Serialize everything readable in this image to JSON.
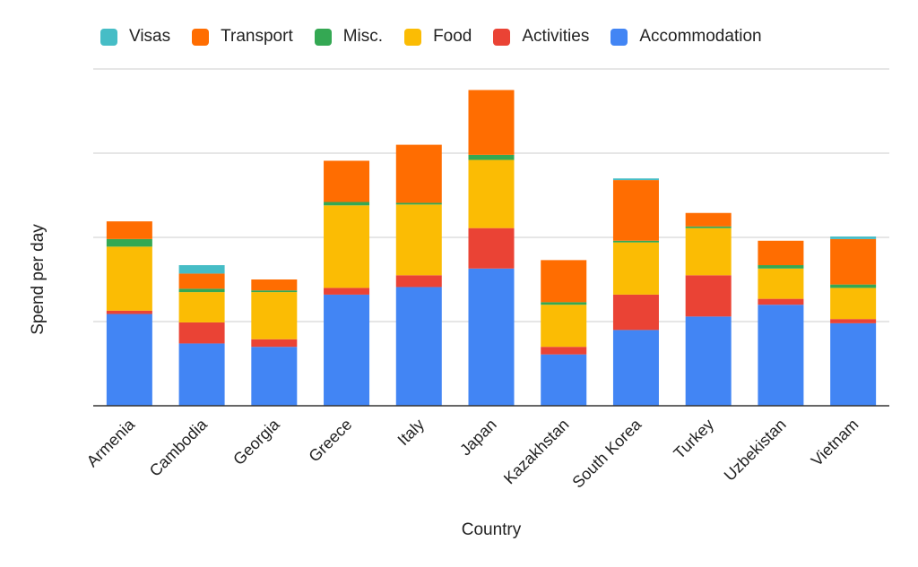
{
  "chart_data": {
    "type": "bar",
    "stacked": true,
    "title": "",
    "xlabel": "Country",
    "ylabel": "Spend per day",
    "ylim": [
      0,
      40
    ],
    "y_tick_labels_shown": false,
    "grid": true,
    "legend_position": "top",
    "categories": [
      "Armenia",
      "Cambodia",
      "Georgia",
      "Greece",
      "Italy",
      "Japan",
      "Kazakhstan",
      "South Korea",
      "Turkey",
      "Uzbekistan",
      "Vietnam"
    ],
    "series": [
      {
        "name": "Accommodation",
        "color": "#4285f4",
        "values": [
          10.9,
          7.4,
          7.0,
          13.2,
          14.1,
          16.3,
          6.1,
          9.0,
          10.6,
          12.0,
          9.8
        ]
      },
      {
        "name": "Activities",
        "color": "#ea4335",
        "values": [
          0.4,
          2.5,
          0.9,
          0.8,
          1.4,
          4.8,
          0.9,
          4.2,
          4.9,
          0.7,
          0.5
        ]
      },
      {
        "name": "Food",
        "color": "#fbbc04",
        "values": [
          7.6,
          3.6,
          5.6,
          9.8,
          8.4,
          8.1,
          5.0,
          6.2,
          5.6,
          3.6,
          3.7
        ]
      },
      {
        "name": "Misc.",
        "color": "#34a853",
        "values": [
          0.9,
          0.4,
          0.2,
          0.4,
          0.2,
          0.6,
          0.3,
          0.2,
          0.2,
          0.4,
          0.4
        ]
      },
      {
        "name": "Transport",
        "color": "#ff6d01",
        "values": [
          2.1,
          1.8,
          1.3,
          4.9,
          6.9,
          7.7,
          5.0,
          7.2,
          1.6,
          2.9,
          5.4
        ]
      },
      {
        "name": "Visas",
        "color": "#46bdc6",
        "values": [
          0,
          1.0,
          0,
          0,
          0,
          0,
          0,
          0.2,
          0,
          0,
          0.3
        ]
      }
    ],
    "legend_order": [
      "Visas",
      "Transport",
      "Misc.",
      "Food",
      "Activities",
      "Accommodation"
    ]
  }
}
